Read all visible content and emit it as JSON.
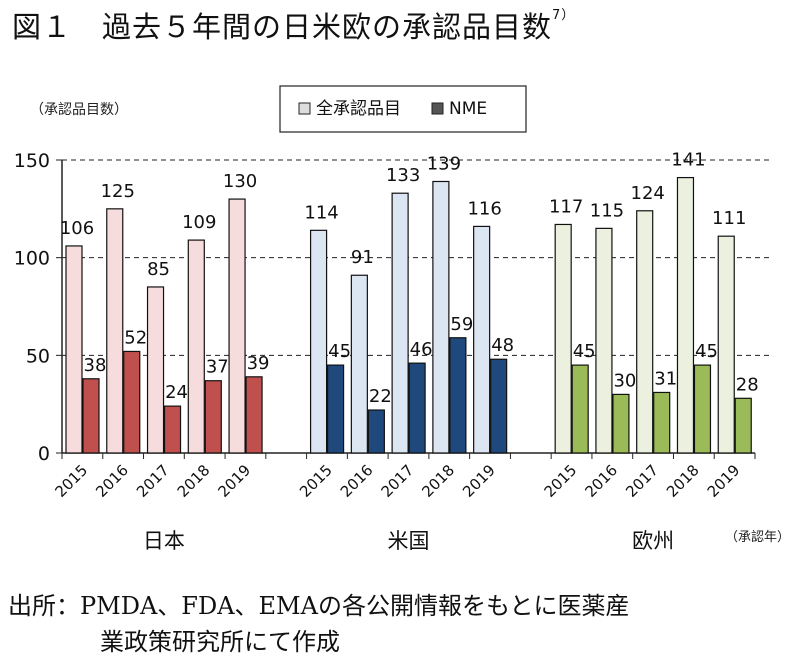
{
  "title": "図１　過去５年間の日米欧の承認品目数",
  "title_ref": "7）",
  "source_label": "出所：",
  "source_line1": "PMDA、FDA、EMAの各公開情報をもとに医薬産",
  "source_line2": "業政策研究所にて作成",
  "chart_data": {
    "type": "bar",
    "ylabel": "（承認品目数）",
    "xlabel": "（承認年）",
    "ylim": [
      0,
      150
    ],
    "yticks": [
      0,
      50,
      100,
      150
    ],
    "grid": "dashed horizontal at 50, 100, 150",
    "legend_position": "top-center",
    "legend": [
      "全承認品目",
      "NME"
    ],
    "groups": [
      {
        "name": "日本",
        "years": [
          "2015",
          "2016",
          "2017",
          "2018",
          "2019"
        ],
        "all": [
          106,
          125,
          85,
          109,
          130
        ],
        "nme": [
          38,
          52,
          24,
          37,
          39
        ],
        "colors": {
          "all": "#f6dcdc",
          "nme": "#c0504d"
        }
      },
      {
        "name": "米国",
        "years": [
          "2015",
          "2016",
          "2017",
          "2018",
          "2019"
        ],
        "all": [
          114,
          91,
          133,
          139,
          116
        ],
        "nme": [
          45,
          22,
          46,
          59,
          48
        ],
        "colors": {
          "all": "#dce6f2",
          "nme": "#1f497d"
        }
      },
      {
        "name": "欧州",
        "years": [
          "2015",
          "2016",
          "2017",
          "2018",
          "2019"
        ],
        "all": [
          117,
          115,
          124,
          141,
          111
        ],
        "nme": [
          45,
          30,
          31,
          45,
          28
        ],
        "colors": {
          "all": "#ebf1de",
          "nme": "#9bbb59"
        }
      }
    ]
  }
}
